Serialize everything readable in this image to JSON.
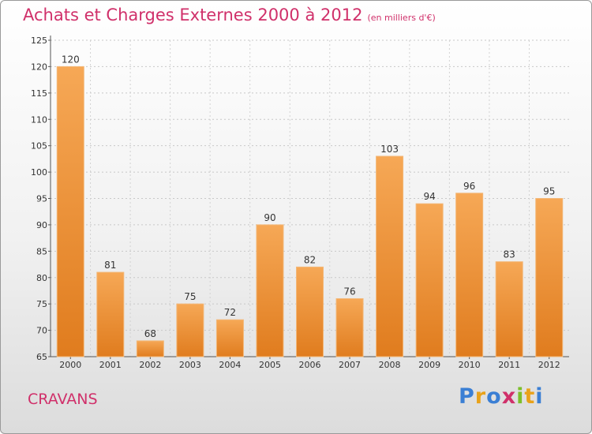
{
  "header": {
    "title": "Achats et Charges Externes 2000 à 2012",
    "unit": "(en milliers d'€)"
  },
  "footer": {
    "commune": "CRAVANS",
    "brand": "Proxiti"
  },
  "colors": {
    "title": "#d0306a",
    "bar_light": "#f6a856",
    "bar_dark": "#e07c1e",
    "brand_letters": [
      "#3b7fd4",
      "#e9a21a",
      "#3b7fd4",
      "#d0306a",
      "#7cbf2a",
      "#e9a21a",
      "#3b7fd4"
    ]
  },
  "chart_data": {
    "type": "bar",
    "title": "Achats et Charges Externes 2000 à 2012",
    "xlabel": "",
    "ylabel": "",
    "categories": [
      "2000",
      "2001",
      "2002",
      "2003",
      "2004",
      "2005",
      "2006",
      "2007",
      "2008",
      "2009",
      "2010",
      "2011",
      "2012"
    ],
    "values": [
      120,
      81,
      68,
      75,
      72,
      90,
      82,
      76,
      103,
      94,
      96,
      83,
      95
    ],
    "ylim": [
      65,
      125
    ],
    "yticks": [
      65,
      70,
      75,
      80,
      85,
      90,
      95,
      100,
      105,
      110,
      115,
      120,
      125
    ],
    "grid": "horizontal dotted",
    "legend": "none"
  }
}
